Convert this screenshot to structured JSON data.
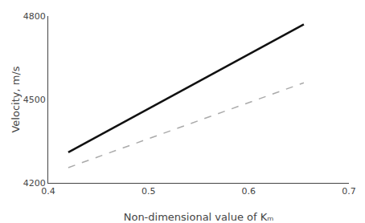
{
  "chart_data": {
    "type": "line",
    "xlabel": "Non-dimensional value of Kₘ",
    "ylabel": "Velocity, m/s",
    "x": [
      0.42,
      0.655
    ],
    "series": [
      {
        "color": "#111111",
        "line_style": "solid",
        "values": [
          4310,
          4770
        ]
      },
      {
        "color": "#aaaaaa",
        "line_style": "dashed",
        "values": [
          4255,
          4560
        ]
      }
    ],
    "xlim": [
      0.4,
      0.7
    ],
    "ylim": [
      4200,
      4800
    ],
    "xticks": [
      0.4,
      0.5,
      0.6,
      0.7
    ],
    "yticks": [
      4200,
      4500,
      4800
    ],
    "grid": false
  }
}
